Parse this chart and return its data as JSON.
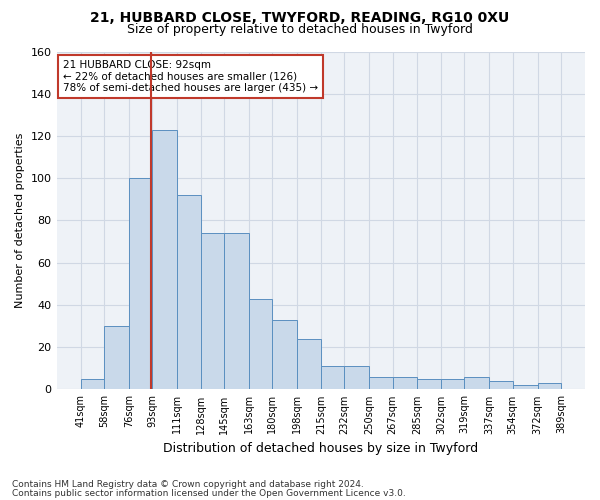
{
  "title1": "21, HUBBARD CLOSE, TWYFORD, READING, RG10 0XU",
  "title2": "Size of property relative to detached houses in Twyford",
  "xlabel": "Distribution of detached houses by size in Twyford",
  "ylabel": "Number of detached properties",
  "footer1": "Contains HM Land Registry data © Crown copyright and database right 2024.",
  "footer2": "Contains public sector information licensed under the Open Government Licence v3.0.",
  "annotation_title": "21 HUBBARD CLOSE: 92sqm",
  "annotation_line1": "← 22% of detached houses are smaller (126)",
  "annotation_line2": "78% of semi-detached houses are larger (435) →",
  "property_size": 92,
  "bar_edges": [
    41,
    58,
    76,
    93,
    111,
    128,
    145,
    163,
    180,
    198,
    215,
    232,
    250,
    267,
    285,
    302,
    319,
    337,
    354,
    372,
    389
  ],
  "bar_heights": [
    5,
    30,
    100,
    123,
    92,
    74,
    74,
    43,
    33,
    24,
    11,
    11,
    6,
    6,
    5,
    5,
    6,
    4,
    2,
    3
  ],
  "bar_color": "#c9d9ea",
  "bar_edge_color": "#5a8fc0",
  "vline_color": "#c0392b",
  "vline_x": 92,
  "ylim": [
    0,
    160
  ],
  "yticks": [
    0,
    20,
    40,
    60,
    80,
    100,
    120,
    140,
    160
  ],
  "grid_color": "#d0d8e4",
  "annotation_box_color": "#c0392b",
  "bg_color": "#eef2f7"
}
